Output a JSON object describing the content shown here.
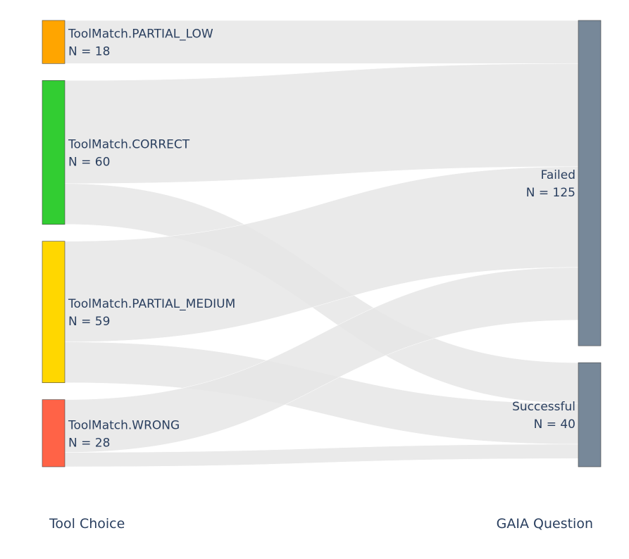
{
  "chart_data": {
    "type": "sankey",
    "source_nodes": [
      {
        "id": "partial_low",
        "name": "ToolMatch.PARTIAL_LOW",
        "count_label": "N = 18",
        "value": 18,
        "color": "#ffa500"
      },
      {
        "id": "correct",
        "name": "ToolMatch.CORRECT",
        "count_label": "N = 60",
        "value": 60,
        "color": "#32cd32"
      },
      {
        "id": "partial_medium",
        "name": "ToolMatch.PARTIAL_MEDIUM",
        "count_label": "N = 59",
        "value": 59,
        "color": "#ffd700"
      },
      {
        "id": "wrong",
        "name": "ToolMatch.WRONG",
        "count_label": "N = 28",
        "value": 28,
        "color": "#ff6347"
      }
    ],
    "target_nodes": [
      {
        "id": "failed",
        "name": "Failed",
        "count_label": "N = 125",
        "value": 125,
        "color": "#778899"
      },
      {
        "id": "successful",
        "name": "Successful",
        "count_label": "N = 40",
        "value": 40,
        "color": "#778899"
      }
    ],
    "links": [
      {
        "source": "partial_low",
        "target": "failed",
        "value": 18
      },
      {
        "source": "correct",
        "target": "failed",
        "value": 43
      },
      {
        "source": "correct",
        "target": "successful",
        "value": 17
      },
      {
        "source": "partial_medium",
        "target": "failed",
        "value": 42
      },
      {
        "source": "partial_medium",
        "target": "successful",
        "value": 17
      },
      {
        "source": "wrong",
        "target": "failed",
        "value": 22
      },
      {
        "source": "wrong",
        "target": "successful",
        "value": 6
      }
    ],
    "link_color": "#e6e6e6",
    "left_column_label": "Tool Choice",
    "right_column_label": "GAIA Question"
  }
}
